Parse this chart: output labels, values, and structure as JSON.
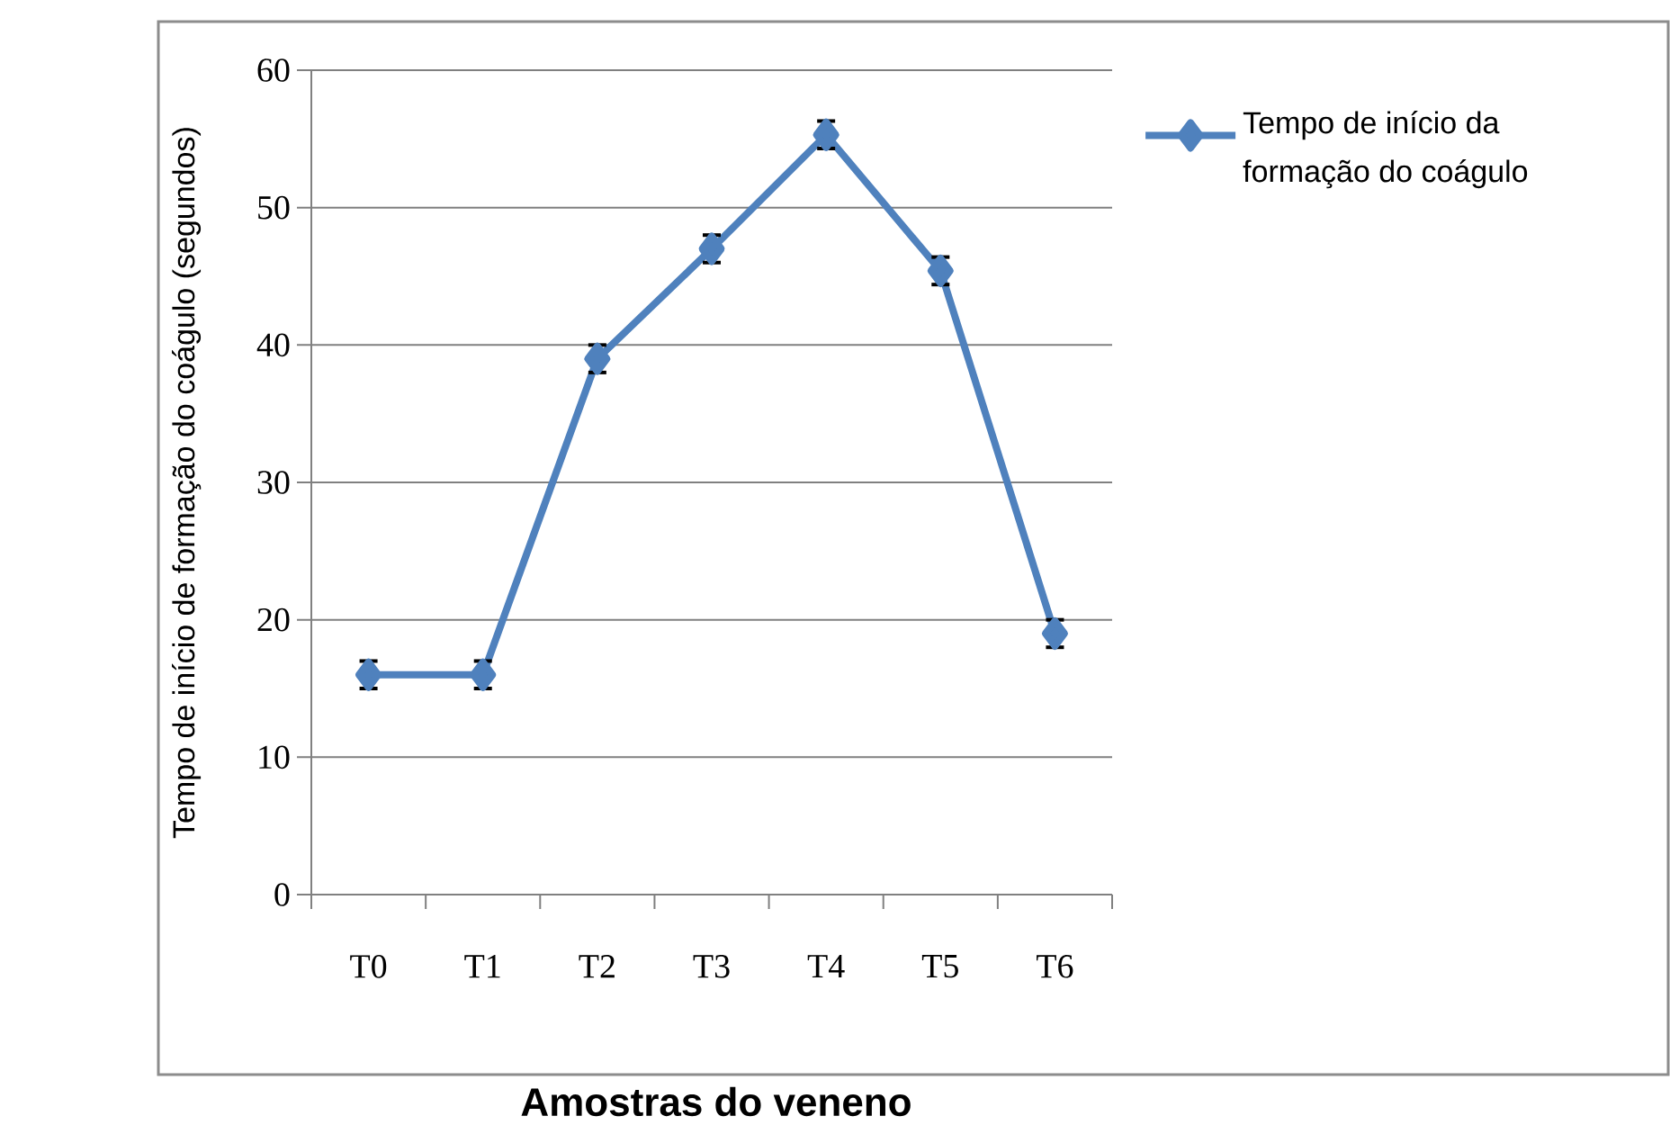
{
  "chart_data": {
    "type": "line",
    "xlabel": "Amostras do veneno",
    "ylabel": "Tempo de início de formação do coágulo (segundos)",
    "categories": [
      "T0",
      "T1",
      "T2",
      "T3",
      "T4",
      "T5",
      "T6"
    ],
    "series": [
      {
        "name": "Tempo de início da formação do coágulo",
        "color": "#4f81bd",
        "values": [
          16,
          16,
          39,
          47,
          55.3,
          45.4,
          19
        ],
        "errors": [
          1,
          1,
          1,
          1,
          1,
          1,
          1
        ]
      }
    ],
    "ylim": [
      0,
      60
    ],
    "yticks": [
      0,
      10,
      20,
      30,
      40,
      50,
      60
    ],
    "grid": "y",
    "legend": "right",
    "marker": "diamond",
    "line_style": "solid"
  }
}
